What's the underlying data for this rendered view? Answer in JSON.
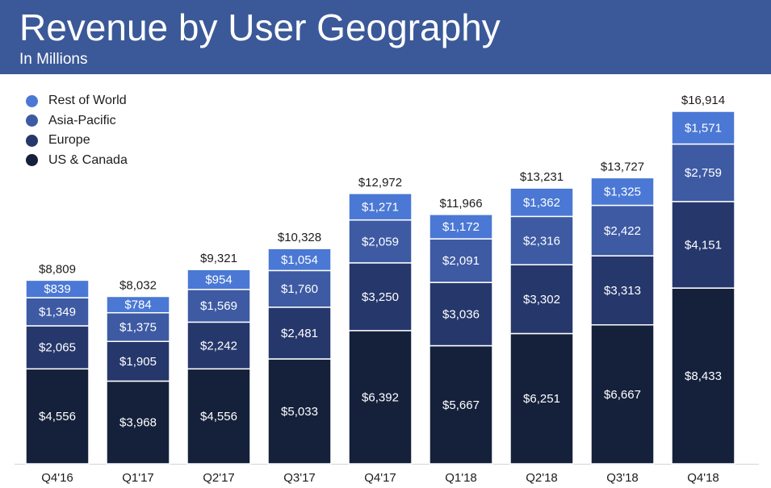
{
  "header": {
    "title": "Revenue by User Geography",
    "subtitle": "In Millions",
    "background": "#3b5998"
  },
  "legend": [
    {
      "label": "Rest of World",
      "color": "#4a78d4"
    },
    {
      "label": "Asia-Pacific",
      "color": "#3d5aa3"
    },
    {
      "label": "Europe",
      "color": "#26376b"
    },
    {
      "label": "US & Canada",
      "color": "#15213b"
    }
  ],
  "chart_data": {
    "type": "bar",
    "stacked": true,
    "title": "Revenue by User Geography",
    "subtitle": "In Millions",
    "categories": [
      "Q4'16",
      "Q1'17",
      "Q2'17",
      "Q3'17",
      "Q4'17",
      "Q1'18",
      "Q2'18",
      "Q3'18",
      "Q4'18"
    ],
    "series": [
      {
        "name": "US & Canada",
        "color": "#15213b",
        "values": [
          4556,
          3968,
          4556,
          5033,
          6392,
          5667,
          6251,
          6667,
          8433
        ],
        "labels": [
          "$4,556",
          "$3,968",
          "$4,556",
          "$5,033",
          "$6,392",
          "$5,667",
          "$6,251",
          "$6,667",
          "$8,433"
        ]
      },
      {
        "name": "Europe",
        "color": "#26376b",
        "values": [
          2065,
          1905,
          2242,
          2481,
          3250,
          3036,
          3302,
          3313,
          4151
        ],
        "labels": [
          "$2,065",
          "$1,905",
          "$2,242",
          "$2,481",
          "$3,250",
          "$3,036",
          "$3,302",
          "$3,313",
          "$4,151"
        ]
      },
      {
        "name": "Asia-Pacific",
        "color": "#3d5aa3",
        "values": [
          1349,
          1375,
          1569,
          1760,
          2059,
          2091,
          2316,
          2422,
          2759
        ],
        "labels": [
          "$1,349",
          "$1,375",
          "$1,569",
          "$1,760",
          "$2,059",
          "$2,091",
          "$2,316",
          "$2,422",
          "$2,759"
        ]
      },
      {
        "name": "Rest of World",
        "color": "#4a78d4",
        "values": [
          839,
          784,
          954,
          1054,
          1271,
          1172,
          1362,
          1325,
          1571
        ],
        "labels": [
          "$839",
          "$784",
          "$954",
          "$1,054",
          "$1,271",
          "$1,172",
          "$1,362",
          "$1,325",
          "$1,571"
        ]
      }
    ],
    "totals": [
      8809,
      8032,
      9321,
      10328,
      12972,
      11966,
      13231,
      13727,
      16914
    ],
    "total_labels": [
      "$8,809",
      "$8,032",
      "$9,321",
      "$10,328",
      "$12,972",
      "$11,966",
      "$13,231",
      "$13,727",
      "$16,914"
    ],
    "ylim": [
      0,
      16914
    ],
    "xlabel": "",
    "ylabel": "",
    "grid": false,
    "legend_position": "top-left"
  }
}
